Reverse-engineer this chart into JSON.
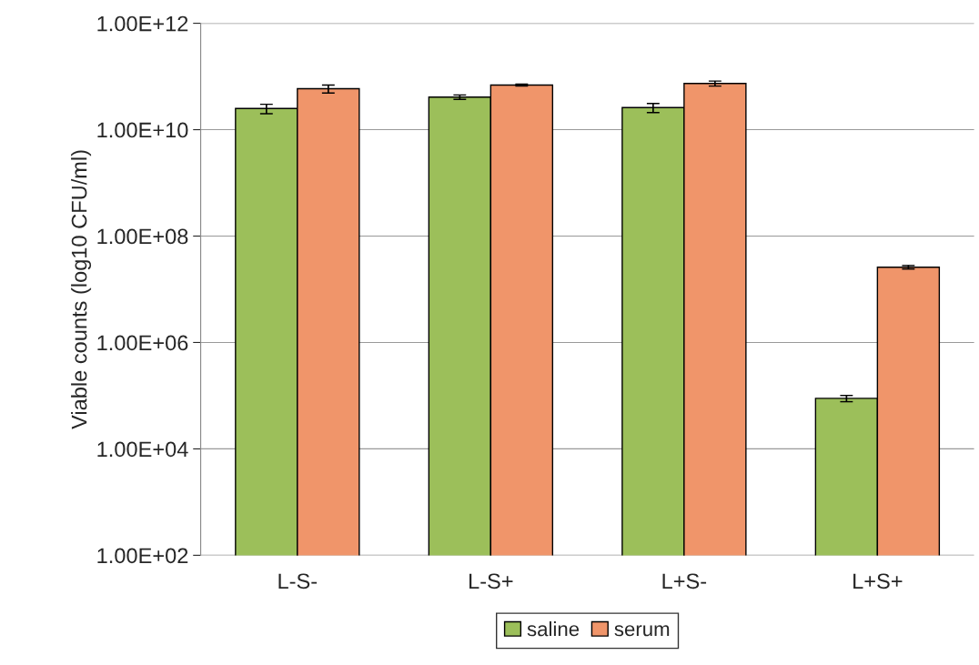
{
  "chart_data": {
    "type": "bar",
    "ylabel": "Viable counts (log10 CFU/ml)",
    "categories": [
      "L-S-",
      "L-S+",
      "L+S-",
      "L+S+"
    ],
    "series": [
      {
        "name": "saline",
        "color": "#9cbf5a",
        "values": [
          25000000000.0,
          41000000000.0,
          26000000000.0,
          89000.0
        ],
        "errors": [
          5000000000.0,
          4000000000.0,
          5000000000.0,
          12000.0
        ]
      },
      {
        "name": "serum",
        "color": "#f0956a",
        "values": [
          59000000000.0,
          69000000000.0,
          74000000000.0,
          26000000.0
        ],
        "errors": [
          10000000000.0,
          3000000000.0,
          8000000000.0,
          2000000.0
        ]
      }
    ],
    "log": "y",
    "ylim": [
      100.0,
      1000000000000.0
    ],
    "yticks": [
      {
        "value": 100.0,
        "label": "1.00E+02"
      },
      {
        "value": 10000.0,
        "label": "1.00E+04"
      },
      {
        "value": 1000000.0,
        "label": "1.00E+06"
      },
      {
        "value": 100000000.0,
        "label": "1.00E+08"
      },
      {
        "value": 10000000000.0,
        "label": "1.00E+10"
      },
      {
        "value": 1000000000000.0,
        "label": "1.00E+12"
      }
    ],
    "grid": "y",
    "legend": "bottom"
  }
}
